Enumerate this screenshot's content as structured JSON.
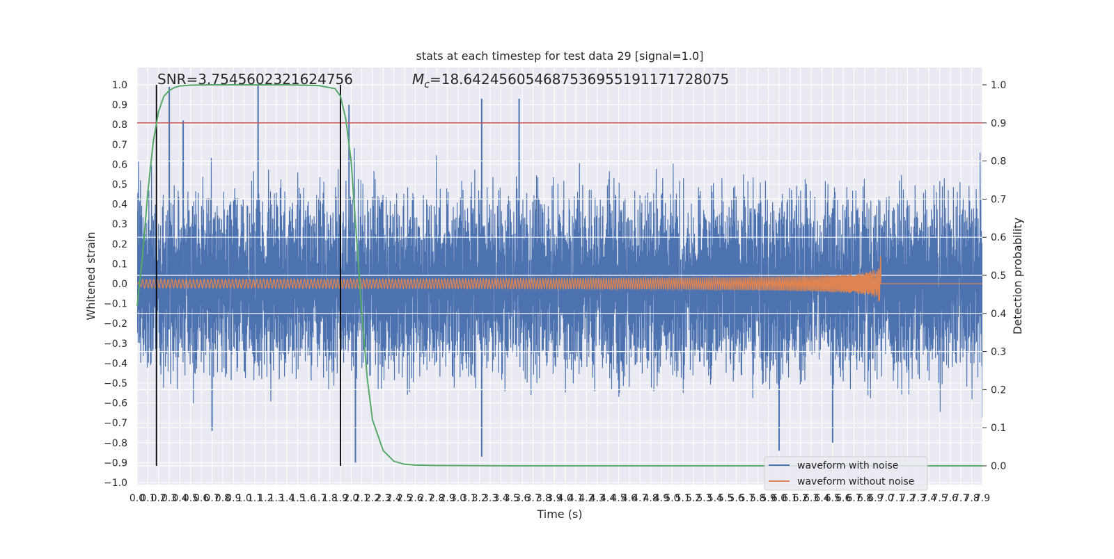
{
  "chart_data": {
    "type": "line",
    "title": "stats at each timestep for test data 29 [signal=1.0]",
    "xlabel": "Time (s)",
    "ylabel": "Whitened strain",
    "ylabel_right": "Detection probability",
    "xlim": [
      0.0,
      7.9
    ],
    "ylim": [
      -1.0,
      1.0
    ],
    "ylim_right": [
      0.0,
      1.0
    ],
    "x_ticks": [
      "0.0",
      "0.1",
      "0.2",
      "0.3",
      "0.4",
      "0.5",
      "0.6",
      "0.7",
      "0.8",
      "0.9",
      "1.0",
      "1.1",
      "1.2",
      "1.3",
      "1.4",
      "1.5",
      "1.6",
      "1.7",
      "1.8",
      "1.9",
      "2.0",
      "2.1",
      "2.2",
      "2.3",
      "2.4",
      "2.5",
      "2.6",
      "2.7",
      "2.8",
      "2.9",
      "3.0",
      "3.1",
      "3.2",
      "3.3",
      "3.4",
      "3.5",
      "3.6",
      "3.7",
      "3.8",
      "3.9",
      "4.0",
      "4.1",
      "4.2",
      "4.3",
      "4.4",
      "4.5",
      "4.6",
      "4.7",
      "4.8",
      "4.9",
      "5.0",
      "5.1",
      "5.2",
      "5.3",
      "5.4",
      "5.5",
      "5.6",
      "5.7",
      "5.8",
      "5.9",
      "6.0",
      "6.1",
      "6.2",
      "6.3",
      "6.4",
      "6.5",
      "6.6",
      "6.7",
      "6.8",
      "6.9",
      "7.0",
      "7.1",
      "7.2",
      "7.3",
      "7.4",
      "7.5",
      "7.6",
      "7.7",
      "7.8",
      "7.9"
    ],
    "y_ticks_left": [
      "1.0",
      "0.9",
      "0.8",
      "0.7",
      "0.6",
      "0.5",
      "0.4",
      "0.3",
      "0.2",
      "0.1",
      "0.0",
      "−0.1",
      "−0.2",
      "−0.3",
      "−0.4",
      "−0.5",
      "−0.6",
      "−0.7",
      "−0.8",
      "−0.9",
      "−1.0"
    ],
    "y_ticks_right": [
      "1.0",
      "0.9",
      "0.8",
      "0.7",
      "0.6",
      "0.5",
      "0.4",
      "0.3",
      "0.2",
      "0.1",
      "0.0"
    ],
    "annotations": {
      "snr": "SNR=3.7545602321624756",
      "mc_symbol": "M",
      "mc_sub": "c",
      "mc_value": "=18.642456054687536955191171728075"
    },
    "vlines": [
      0.18,
      1.9
    ],
    "threshold_right": 0.9,
    "legend": {
      "position": "lower right",
      "items": [
        {
          "label": "waveform with noise",
          "color": "#4c72b0"
        },
        {
          "label": "waveform without noise",
          "color": "#dd8452"
        }
      ]
    },
    "series": [
      {
        "name": "waveform with noise",
        "color": "#4c72b0",
        "noise_seed": 29,
        "noise_amplitude": 0.38,
        "spikes": [
          {
            "x": 0.3,
            "y": 0.99
          },
          {
            "x": 0.43,
            "y": 0.82
          },
          {
            "x": 1.13,
            "y": 1.0
          },
          {
            "x": 1.98,
            "y": 0.9
          },
          {
            "x": 3.22,
            "y": 0.93
          },
          {
            "x": 3.57,
            "y": 0.93
          },
          {
            "x": 0.7,
            "y": -0.74
          },
          {
            "x": 3.22,
            "y": -0.87
          },
          {
            "x": 6.0,
            "y": -0.84
          },
          {
            "x": 6.5,
            "y": -0.8
          },
          {
            "x": 2.04,
            "y": -0.9
          }
        ]
      },
      {
        "name": "waveform without noise",
        "color": "#dd8452",
        "chirp_end": 6.95,
        "peak_amplitude": 0.14
      },
      {
        "name": "detection probability",
        "axis": "right",
        "color": "#55a868",
        "x": [
          0.0,
          0.05,
          0.1,
          0.15,
          0.2,
          0.25,
          0.3,
          0.35,
          0.4,
          0.5,
          0.7,
          1.0,
          1.4,
          1.7,
          1.85,
          1.9,
          1.95,
          2.0,
          2.05,
          2.1,
          2.15,
          2.2,
          2.3,
          2.4,
          2.5,
          2.6,
          2.8,
          3.5,
          5.0,
          7.9
        ],
        "values": [
          0.42,
          0.55,
          0.72,
          0.85,
          0.93,
          0.97,
          0.985,
          0.993,
          0.997,
          0.999,
          1.0,
          1.0,
          1.0,
          0.998,
          0.99,
          0.97,
          0.91,
          0.8,
          0.6,
          0.4,
          0.23,
          0.12,
          0.04,
          0.012,
          0.004,
          0.002,
          0.001,
          0.0,
          0.0,
          0.0
        ]
      }
    ]
  }
}
